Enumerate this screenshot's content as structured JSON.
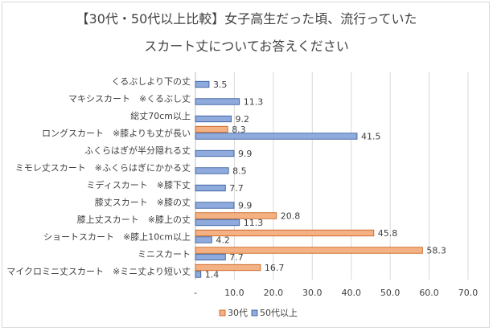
{
  "chart_data": {
    "type": "bar",
    "orientation": "horizontal",
    "title_line1": "【30代・50代以上比較】女子高生だった頃、流行っていた",
    "title_line2": "スカート丈についてお答えください",
    "categories": [
      "くるぶしより下の丈",
      "マキシスカート　※くるぶし丈",
      "総丈70cm以上",
      "ロングスカート　※膝よりも丈が長い",
      "ふくらはぎが半分隠れる丈",
      "ミモレ丈スカート　※ふくらはぎにかかる丈",
      "ミディスカート　※膝下丈",
      "膝丈スカート　※膝の丈",
      "膝上丈スカート　※膝上の丈",
      "ショートスカート　※膝上10cm以上",
      "ミニスカート",
      "マイクロミニ丈スカート　※ミニ丈より短い丈"
    ],
    "series": [
      {
        "name": "30代",
        "color": "#f4b183",
        "stroke": "#c55a11",
        "values": [
          null,
          null,
          null,
          8.3,
          null,
          null,
          null,
          null,
          20.8,
          45.8,
          58.3,
          16.7
        ]
      },
      {
        "name": "50代以上",
        "color": "#8faadc",
        "stroke": "#2f5597",
        "values": [
          3.5,
          11.3,
          9.2,
          41.5,
          9.9,
          8.5,
          7.7,
          9.9,
          11.3,
          4.2,
          7.7,
          1.4
        ]
      }
    ],
    "xlim": [
      0,
      70
    ],
    "xticks": [
      "-",
      "10.0",
      "20.0",
      "30.0",
      "40.0",
      "50.0",
      "60.0",
      "70.0"
    ],
    "grid": true,
    "legend": "bottom"
  }
}
